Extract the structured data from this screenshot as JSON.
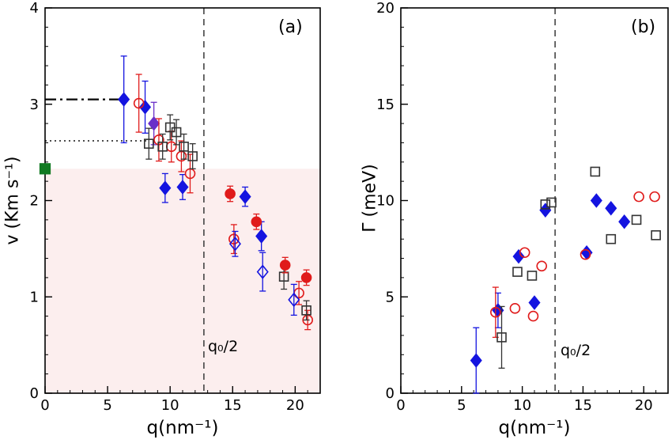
{
  "figure": {
    "background": "#ffffff",
    "accent_blue": "#1414e0",
    "accent_red": "#e01b1b",
    "accent_green": "#117a22",
    "accent_purple": "#6a2fc9",
    "shade_pink": "#fceeee"
  },
  "chart_data": [
    {
      "id": "a",
      "type": "scatter",
      "panel_label": "(a)",
      "xlabel": "q(nm⁻¹)",
      "ylabel": "v (Km s⁻¹)",
      "xlim": [
        0,
        22
      ],
      "ylim": [
        0,
        4
      ],
      "xticks": [
        0,
        5,
        10,
        15,
        20
      ],
      "yticks": [
        0,
        1,
        2,
        3,
        4
      ],
      "x_minor_step": 1,
      "y_minor_step": 0.2,
      "grid": false,
      "legend": null,
      "vline": {
        "x": 12.7,
        "label": "q₀/2",
        "color": "#444444",
        "style": "dashed"
      },
      "shaded_region": {
        "y_top": 2.33,
        "color": "#fceeee"
      },
      "hlines": [
        {
          "y": 3.05,
          "x0": 0,
          "x1": 6.3,
          "style": "dashdot",
          "color": "#111111",
          "width": 2.4
        },
        {
          "y": 2.62,
          "x0": 0,
          "x1": 8.1,
          "style": "dotted",
          "color": "#333333",
          "width": 1.7
        }
      ],
      "special_points": [
        {
          "x": 0,
          "y": 2.33,
          "marker": "square",
          "color": "#117a22",
          "filled": true,
          "name": "green-reference-square"
        }
      ],
      "series": [
        {
          "name": "blue-filled-diamond",
          "marker": "diamond",
          "filled": true,
          "color": "#1414e0",
          "points": [
            [
              6.3,
              3.05,
              0.45
            ],
            [
              8.0,
              2.97,
              0.27
            ],
            [
              9.6,
              2.13,
              0.15
            ],
            [
              11.0,
              2.14,
              0.13
            ],
            [
              16.0,
              2.04,
              0.1
            ],
            [
              17.3,
              1.63,
              0.15
            ]
          ]
        },
        {
          "name": "purple-filled-diamond",
          "marker": "diamond",
          "filled": true,
          "color": "#6a2fc9",
          "points": [
            [
              8.7,
              2.8,
              0.22
            ]
          ]
        },
        {
          "name": "red-open-circle",
          "marker": "circle",
          "filled": false,
          "color": "#e01b1b",
          "points": [
            [
              7.5,
              3.01,
              0.3
            ],
            [
              9.1,
              2.63,
              0.22
            ],
            [
              10.1,
              2.56,
              0.16
            ],
            [
              10.9,
              2.46,
              0.16
            ],
            [
              11.6,
              2.28,
              0.2
            ],
            [
              15.1,
              1.6,
              0.15
            ],
            [
              20.3,
              1.04,
              0.12
            ],
            [
              21.0,
              0.76,
              0.1
            ]
          ]
        },
        {
          "name": "black-open-square",
          "marker": "square",
          "filled": false,
          "color": "#333333",
          "points": [
            [
              8.3,
              2.59,
              0.16
            ],
            [
              9.4,
              2.56,
              0.13
            ],
            [
              10.0,
              2.76,
              0.13
            ],
            [
              10.5,
              2.71,
              0.13
            ],
            [
              11.1,
              2.56,
              0.13
            ],
            [
              11.8,
              2.46,
              0.13
            ],
            [
              19.1,
              1.21,
              0.13
            ],
            [
              20.9,
              0.86,
              0.1
            ]
          ]
        },
        {
          "name": "red-filled-circle",
          "marker": "circle",
          "filled": true,
          "color": "#e01b1b",
          "points": [
            [
              14.8,
              2.07,
              0.08
            ],
            [
              16.9,
              1.78,
              0.08
            ],
            [
              19.2,
              1.33,
              0.08
            ],
            [
              20.9,
              1.2,
              0.08
            ]
          ]
        },
        {
          "name": "blue-open-diamond",
          "marker": "diamond",
          "filled": false,
          "color": "#1414e0",
          "points": [
            [
              15.2,
              1.55,
              0.13
            ],
            [
              17.4,
              1.26,
              0.2
            ],
            [
              19.9,
              0.97,
              0.16
            ]
          ]
        }
      ]
    },
    {
      "id": "b",
      "type": "scatter",
      "panel_label": "(b)",
      "xlabel": "q(nm⁻¹)",
      "ylabel": "Γ (meV)",
      "xlim": [
        0,
        22
      ],
      "ylim": [
        0,
        20
      ],
      "xticks": [
        0,
        5,
        10,
        15,
        20
      ],
      "yticks": [
        0,
        5,
        10,
        15,
        20
      ],
      "x_minor_step": 1,
      "y_minor_step": 1,
      "grid": false,
      "legend": null,
      "vline": {
        "x": 12.7,
        "label": "q₀/2",
        "color": "#444444",
        "style": "dashed"
      },
      "shaded_region": null,
      "hlines": [],
      "special_points": [],
      "series": [
        {
          "name": "blue-filled-diamond",
          "marker": "diamond",
          "filled": true,
          "color": "#1414e0",
          "points": [
            [
              6.2,
              1.7,
              1.7
            ],
            [
              8.0,
              4.3,
              0.9
            ],
            [
              9.7,
              7.1,
              0
            ],
            [
              11.0,
              4.7,
              0
            ],
            [
              11.9,
              9.5,
              0
            ],
            [
              15.3,
              7.3,
              0
            ],
            [
              16.1,
              10.0,
              0
            ],
            [
              17.3,
              9.6,
              0
            ],
            [
              18.4,
              8.9,
              0
            ]
          ]
        },
        {
          "name": "red-open-circle",
          "marker": "circle",
          "filled": false,
          "color": "#e01b1b",
          "points": [
            [
              7.8,
              4.2,
              1.3
            ],
            [
              9.4,
              4.4,
              0
            ],
            [
              10.2,
              7.3,
              0
            ],
            [
              10.9,
              4.0,
              0
            ],
            [
              11.6,
              6.6,
              0
            ],
            [
              15.2,
              7.2,
              0
            ],
            [
              19.6,
              10.2,
              0
            ],
            [
              20.9,
              10.2,
              0
            ]
          ]
        },
        {
          "name": "black-open-square",
          "marker": "square",
          "filled": false,
          "color": "#333333",
          "points": [
            [
              8.3,
              2.9,
              1.6
            ],
            [
              9.6,
              6.3,
              0
            ],
            [
              10.8,
              6.1,
              0
            ],
            [
              11.9,
              9.8,
              0
            ],
            [
              12.4,
              9.9,
              0
            ],
            [
              16.0,
              11.5,
              0
            ],
            [
              17.3,
              8.0,
              0
            ],
            [
              19.4,
              9.0,
              0
            ],
            [
              21.0,
              8.2,
              0
            ]
          ]
        }
      ]
    }
  ]
}
